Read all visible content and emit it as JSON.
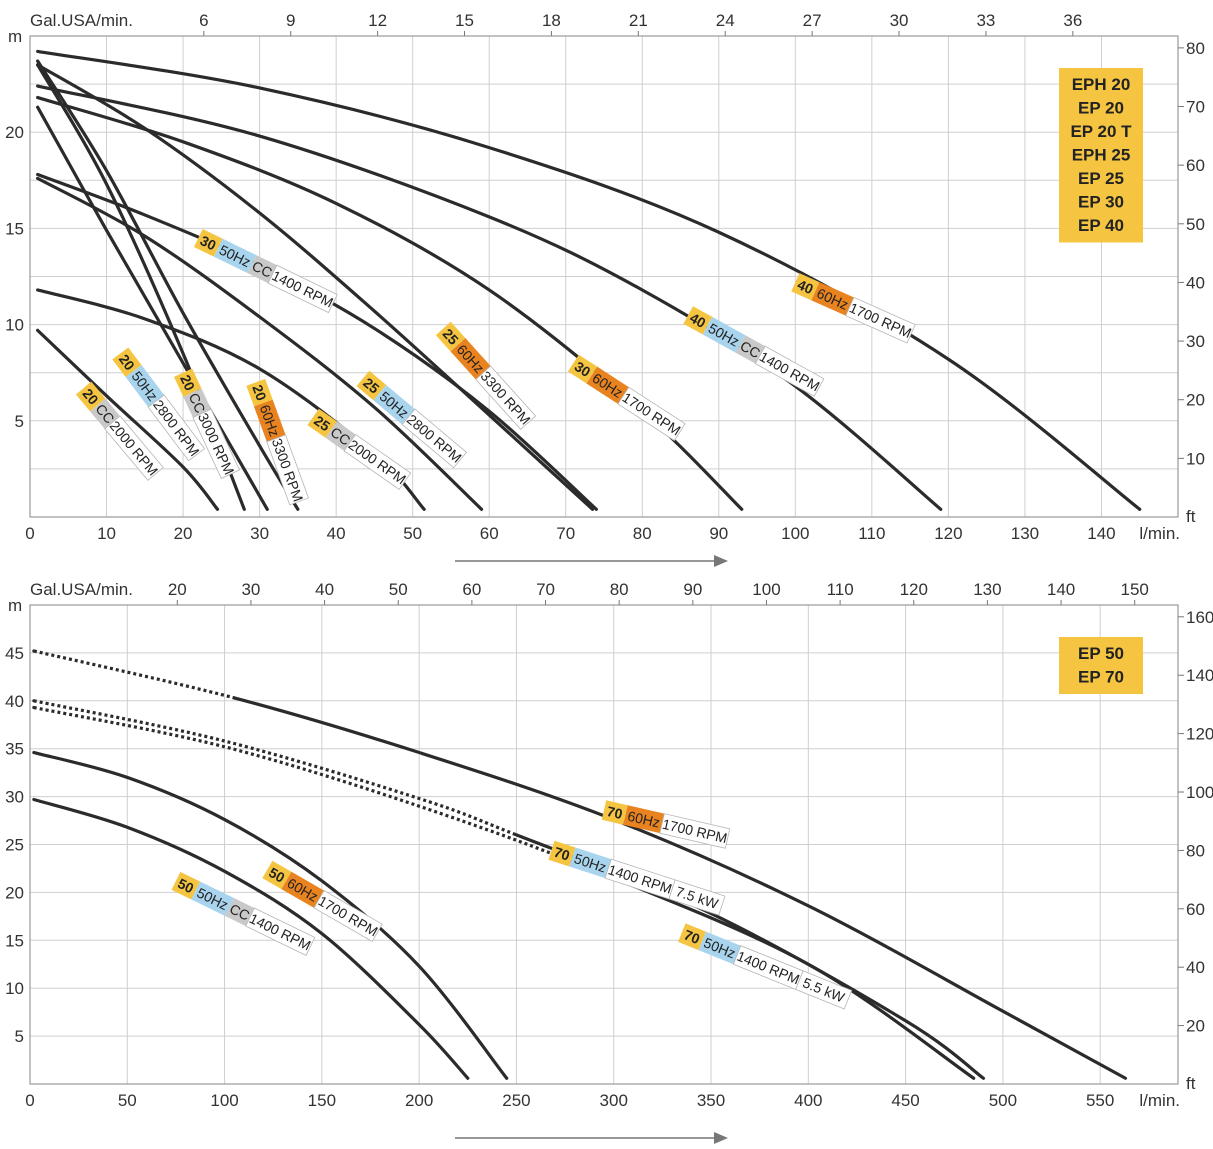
{
  "colors": {
    "yellow": "#f5c542",
    "orange": "#e8831f",
    "blue": "#a9d4ee",
    "gray": "#c9c9c9",
    "curve": "#2b2b2b",
    "grid": "#cfcfcf"
  },
  "chart_data": [
    {
      "type": "line",
      "models": [
        "EPH 20",
        "EP 20",
        "EP 20 T",
        "EPH 25",
        "EP 25",
        "EP 30",
        "EP 40"
      ],
      "xlabel": "l/min.",
      "x2label": "Gal.USA/min.",
      "ylabel": "m",
      "y2label": "ft",
      "xlim": [
        0,
        150
      ],
      "ylim": [
        0,
        25
      ],
      "xticks": [
        0,
        10,
        20,
        30,
        40,
        50,
        60,
        70,
        80,
        90,
        100,
        110,
        120,
        130,
        140
      ],
      "yticks": [
        5,
        10,
        15,
        20
      ],
      "x2ticks": [
        6,
        9,
        12,
        15,
        18,
        21,
        24,
        27,
        30,
        33,
        36
      ],
      "y2ticks": [
        10,
        20,
        30,
        40,
        50,
        60,
        70,
        80
      ],
      "series": [
        {
          "labels": [
            "40",
            "60Hz",
            "1700 RPM"
          ],
          "x": [
            1,
            30,
            60,
            90,
            120,
            145
          ],
          "y": [
            24.2,
            22.3,
            19.2,
            14.8,
            8.2,
            0.4
          ]
        },
        {
          "labels": [
            "40",
            "50Hz",
            "CC",
            "1400 RPM"
          ],
          "x": [
            1,
            30,
            60,
            80,
            100,
            119
          ],
          "y": [
            22.4,
            19.8,
            15.6,
            11.8,
            6.8,
            0.4
          ]
        },
        {
          "labels": [
            "30",
            "60Hz",
            "1700 RPM"
          ],
          "x": [
            1,
            20,
            40,
            60,
            80,
            93
          ],
          "y": [
            21.8,
            19.5,
            16.3,
            11.8,
            5.5,
            0.4
          ]
        },
        {
          "labels": [
            "30",
            "50Hz",
            "CC",
            "1400 RPM"
          ],
          "x": [
            1,
            15,
            30,
            45,
            60,
            74
          ],
          "y": [
            17.8,
            15.7,
            13.1,
            9.8,
            5.5,
            0.4
          ]
        },
        {
          "labels": [
            "25",
            "60Hz",
            "3300 RPM"
          ],
          "x": [
            1,
            15,
            30,
            45,
            60,
            73.5
          ],
          "y": [
            23.5,
            20.2,
            15.8,
            10.7,
            5.3,
            0.4
          ]
        },
        {
          "labels": [
            "25",
            "50Hz",
            "2800 RPM"
          ],
          "x": [
            1,
            15,
            30,
            45,
            59
          ],
          "y": [
            17.6,
            14.6,
            10.4,
            5.7,
            0.4
          ]
        },
        {
          "labels": [
            "25",
            "CC",
            "2000 RPM"
          ],
          "x": [
            1,
            15,
            30,
            45,
            51.5
          ],
          "y": [
            11.8,
            10.3,
            7.7,
            3.3,
            0.4
          ]
        },
        {
          "labels": [
            "20",
            "60Hz",
            "3300 RPM"
          ],
          "x": [
            1,
            10,
            20,
            30,
            35
          ],
          "y": [
            23.7,
            18.0,
            10.6,
            3.7,
            0.4
          ]
        },
        {
          "labels": [
            "20",
            "CC",
            "3000 RPM"
          ],
          "x": [
            1,
            10,
            20,
            28
          ],
          "y": [
            23.5,
            17.3,
            8.5,
            0.4
          ]
        },
        {
          "labels": [
            "20",
            "50Hz",
            "2800 RPM"
          ],
          "x": [
            1,
            10,
            20,
            31
          ],
          "y": [
            21.3,
            14.9,
            8.0,
            0.4
          ]
        },
        {
          "labels": [
            "20",
            "CC",
            "2000 RPM"
          ],
          "x": [
            1,
            10,
            20,
            24.5
          ],
          "y": [
            9.7,
            6.3,
            2.6,
            0.4
          ]
        }
      ]
    },
    {
      "type": "line",
      "models": [
        "EP 50",
        "EP 70"
      ],
      "xlabel": "l/min.",
      "x2label": "Gal.USA/min.",
      "ylabel": "m",
      "y2label": "ft",
      "xlim": [
        0,
        590
      ],
      "ylim": [
        0,
        50
      ],
      "xticks": [
        0,
        50,
        100,
        150,
        200,
        250,
        300,
        350,
        400,
        450,
        500,
        550
      ],
      "yticks": [
        5,
        10,
        15,
        20,
        25,
        30,
        35,
        40,
        45
      ],
      "x2ticks": [
        20,
        30,
        40,
        50,
        60,
        70,
        80,
        90,
        100,
        110,
        120,
        130,
        140,
        150
      ],
      "y2ticks": [
        20,
        40,
        60,
        80,
        100,
        120,
        140,
        160
      ],
      "series": [
        {
          "labels": [
            "70",
            "60Hz",
            "1700 RPM"
          ],
          "dashed_until": 105,
          "x": [
            2,
            105,
            200,
            300,
            400,
            500,
            563
          ],
          "y": [
            45.2,
            40.3,
            34.6,
            27.6,
            18.6,
            7.6,
            0.6
          ]
        },
        {
          "labels": [
            "70",
            "50Hz",
            "1400 RPM",
            "7.5 kW"
          ],
          "dashed_until": 250,
          "x": [
            2,
            100,
            200,
            250,
            350,
            450,
            490
          ],
          "y": [
            40.0,
            35.8,
            29.8,
            26.0,
            17.8,
            6.6,
            0.6
          ]
        },
        {
          "labels": [
            "70",
            "50Hz",
            "1400 RPM",
            "5.5 kW"
          ],
          "dashed_until": 295,
          "x": [
            2,
            100,
            200,
            295,
            400,
            485
          ],
          "y": [
            39.3,
            35.2,
            29.0,
            21.9,
            12.5,
            0.6
          ]
        },
        {
          "labels": [
            "50",
            "60Hz",
            "1700 RPM"
          ],
          "dashed_until": 0,
          "x": [
            2,
            50,
            100,
            150,
            200,
            245
          ],
          "y": [
            34.6,
            32.0,
            27.6,
            21.2,
            12.3,
            0.6
          ]
        },
        {
          "labels": [
            "50",
            "50Hz",
            "CC",
            "1400 RPM"
          ],
          "dashed_until": 0,
          "x": [
            2,
            50,
            100,
            150,
            200,
            225
          ],
          "y": [
            29.7,
            26.8,
            22.2,
            15.7,
            6.2,
            0.6
          ]
        }
      ]
    }
  ]
}
